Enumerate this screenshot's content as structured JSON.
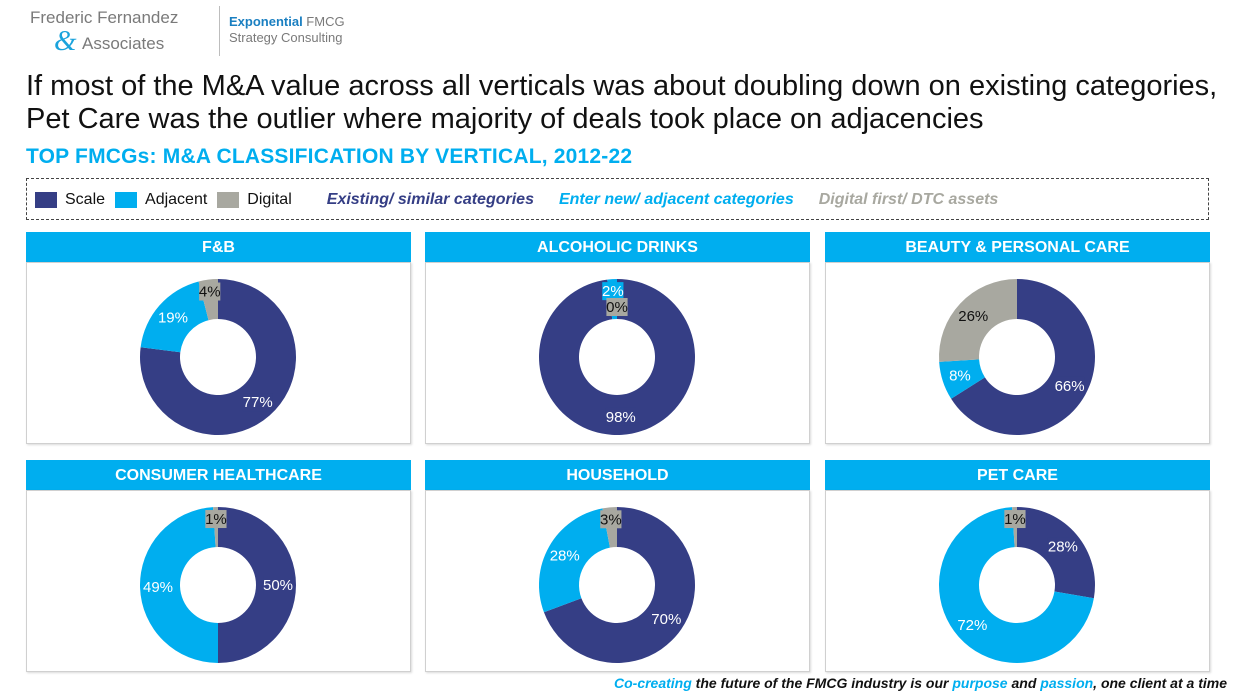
{
  "logo": {
    "line1": "Frederic Fernandez",
    "amp": "&",
    "line2": "Associates",
    "brand_bold": "Exponential",
    "brand_rest": " FMCG",
    "brand_line2": "Strategy Consulting"
  },
  "headline": "If most of the M&A value across all verticals was about doubling down on existing categories, Pet Care was the outlier where majority of deals took place on adjacencies",
  "subtitle": "TOP FMCGs: M&A CLASSIFICATION BY VERTICAL, 2012-22",
  "legend": {
    "items": [
      {
        "label": "Scale",
        "color": "#353e85"
      },
      {
        "label": "Adjacent",
        "color": "#00aeef"
      },
      {
        "label": "Digital",
        "color": "#a8a8a0"
      }
    ],
    "notes": [
      {
        "text": "Existing/ similar categories",
        "color": "#353e85"
      },
      {
        "text": "Enter new/ adjacent categories",
        "color": "#00aeef"
      },
      {
        "text": "Digital first/ DTC assets",
        "color": "#a8a8a0"
      }
    ]
  },
  "chart_data": [
    {
      "type": "pie",
      "title": "F&B",
      "categories": [
        "Scale",
        "Adjacent",
        "Digital"
      ],
      "values": [
        77,
        19,
        4
      ],
      "labels": [
        "77%",
        "19%",
        "4%"
      ]
    },
    {
      "type": "pie",
      "title": "ALCOHOLIC DRINKS",
      "categories": [
        "Scale",
        "Adjacent",
        "Digital"
      ],
      "values": [
        98,
        2,
        0
      ],
      "labels": [
        "98%",
        "2%",
        "0%"
      ]
    },
    {
      "type": "pie",
      "title": "BEAUTY & PERSONAL CARE",
      "categories": [
        "Scale",
        "Adjacent",
        "Digital"
      ],
      "values": [
        66,
        8,
        26
      ],
      "labels": [
        "66%",
        "8%",
        "26%"
      ]
    },
    {
      "type": "pie",
      "title": "CONSUMER HEALTHCARE",
      "categories": [
        "Scale",
        "Adjacent",
        "Digital"
      ],
      "values": [
        50,
        49,
        1
      ],
      "labels": [
        "50%",
        "49%",
        "1%"
      ]
    },
    {
      "type": "pie",
      "title": "HOUSEHOLD",
      "categories": [
        "Scale",
        "Adjacent",
        "Digital"
      ],
      "values": [
        70,
        28,
        3
      ],
      "labels": [
        "70%",
        "28%",
        "3%"
      ]
    },
    {
      "type": "pie",
      "title": "PET CARE",
      "categories": [
        "Scale",
        "Adjacent",
        "Digital"
      ],
      "values": [
        28,
        72,
        1
      ],
      "labels": [
        "28%",
        "72%",
        "1%"
      ]
    }
  ],
  "footer": {
    "part1": "Co-creating",
    "part2": " the future of the FMCG industry is our ",
    "part3": "purpose",
    "part4": " and ",
    "part5": "passion",
    "part6": ", one client at a time"
  }
}
